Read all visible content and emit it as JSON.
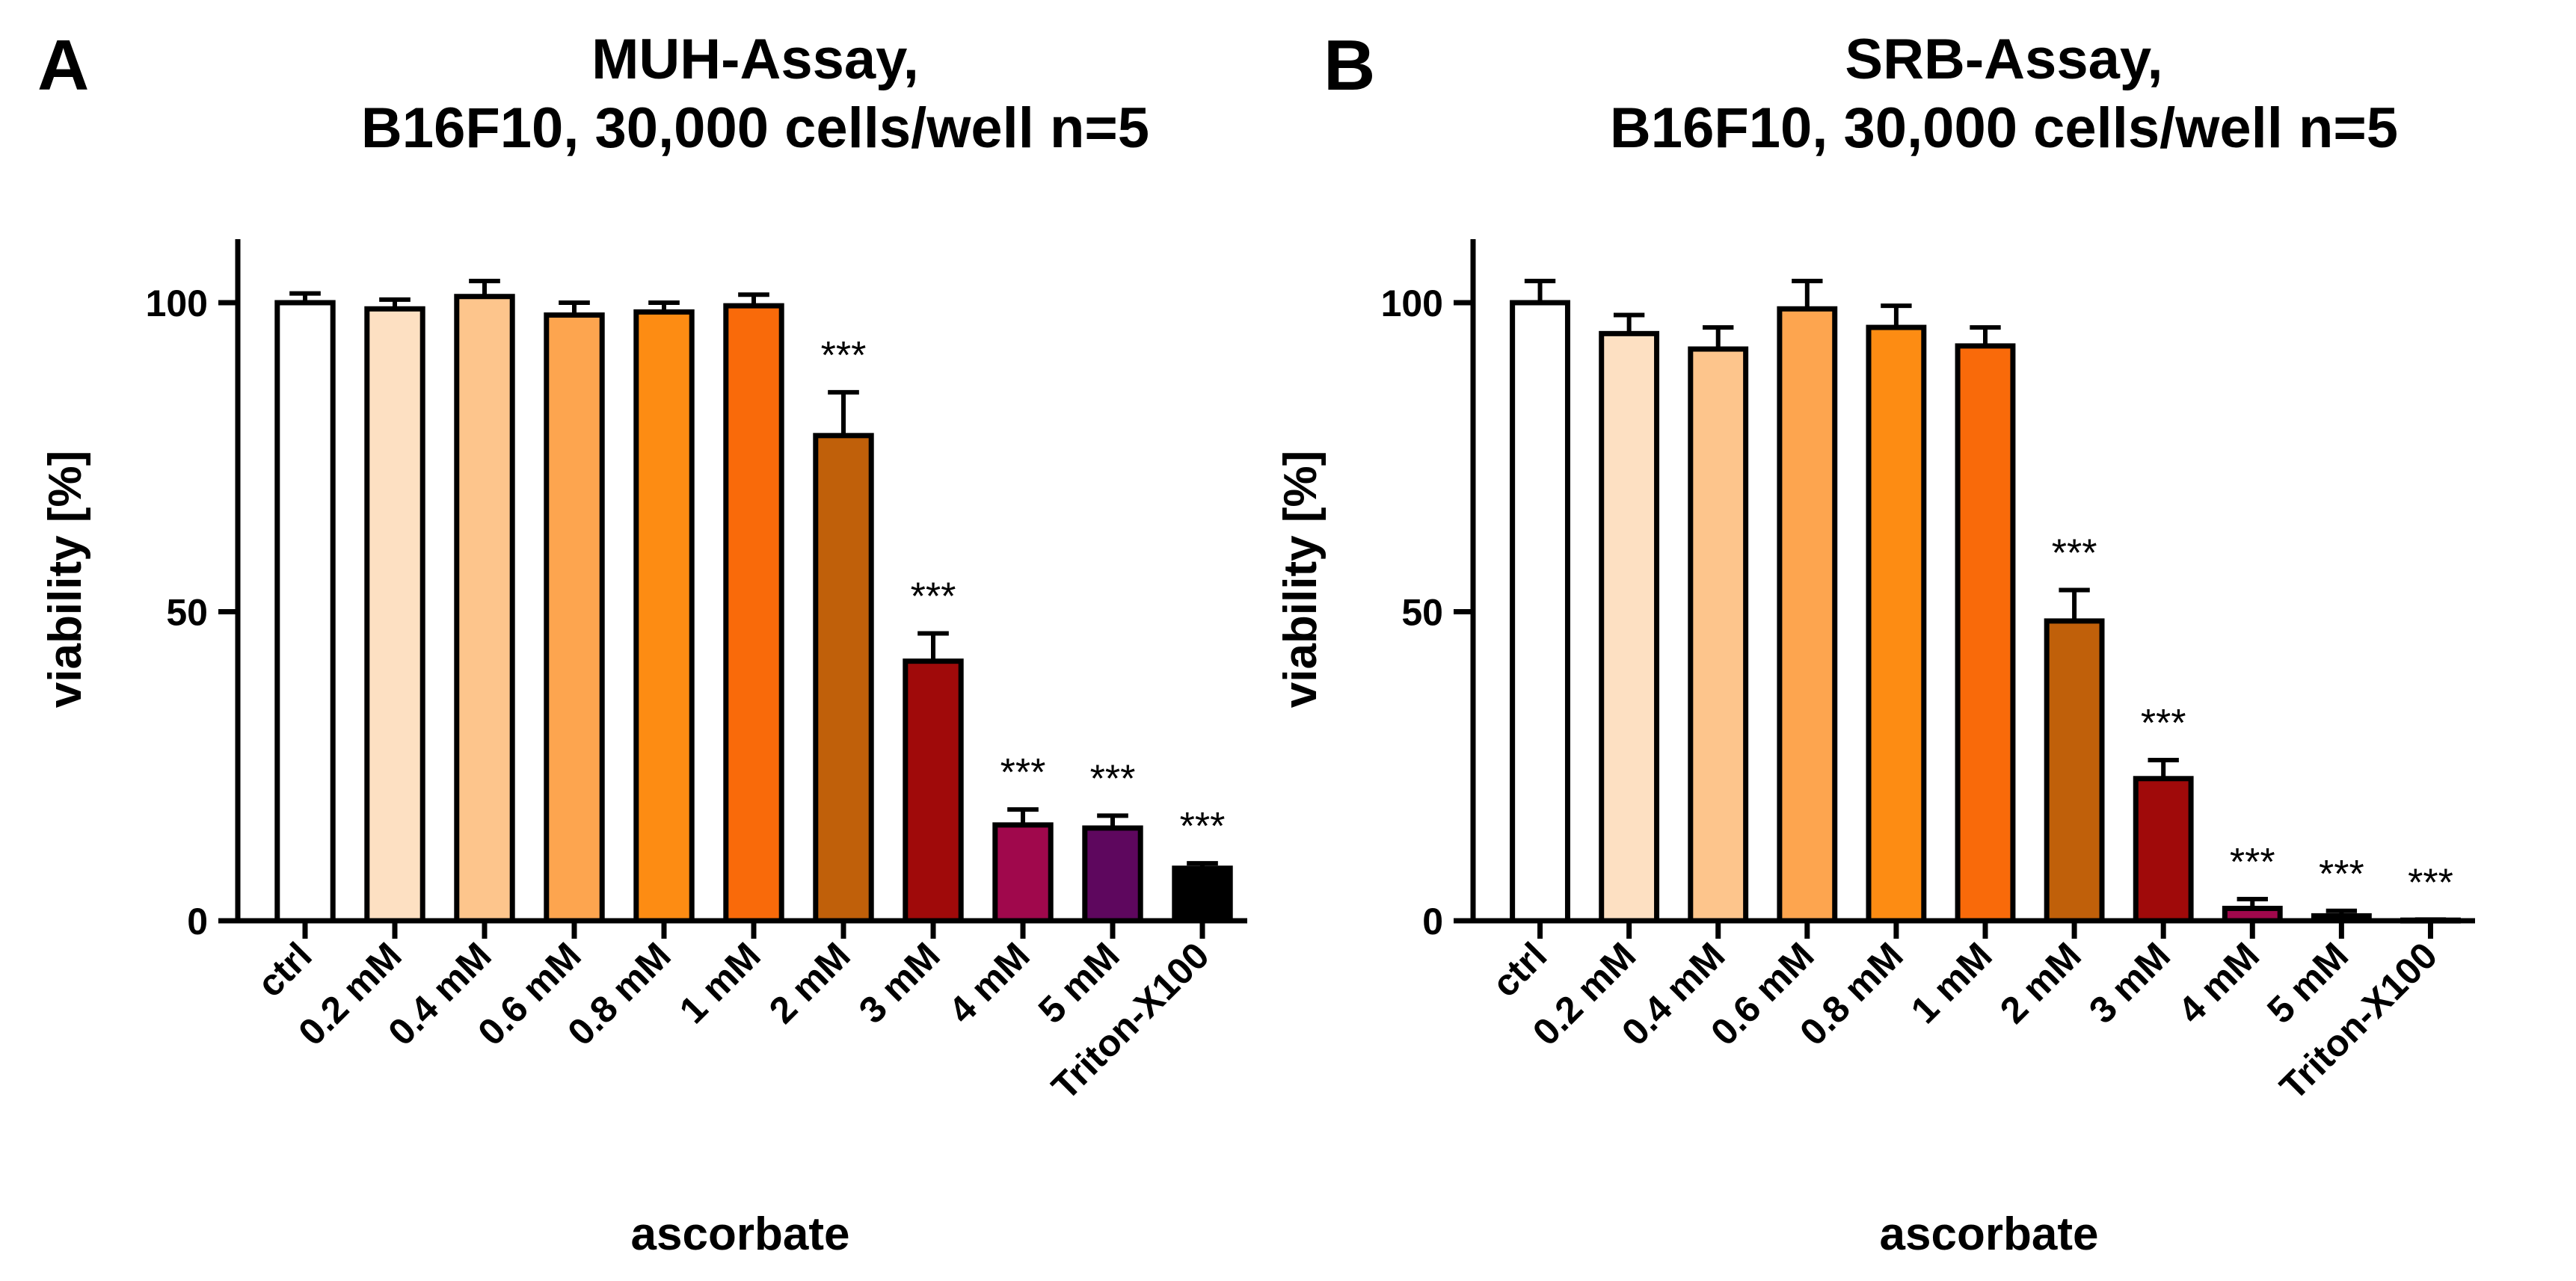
{
  "chart_data": [
    {
      "type": "bar",
      "panel_label": "A",
      "title": [
        "MUH-Assay,",
        "B16F10, 30,000 cells/well n=5"
      ],
      "xlabel": "ascorbate",
      "ylabel": "viability [%]",
      "ylim": [
        0,
        110
      ],
      "yticks": [
        0,
        50,
        100
      ],
      "categories": [
        "ctrl",
        "0.2 mM",
        "0.4 mM",
        "0.6 mM",
        "0.8 mM",
        "1 mM",
        "2 mM",
        "3 mM",
        "4 mM",
        "5 mM",
        "Triton-X100"
      ],
      "values": [
        100,
        99,
        101,
        98,
        98.5,
        99.5,
        78.5,
        42,
        15.5,
        15,
        8.5
      ],
      "errors": [
        1.5,
        1.5,
        2.5,
        2,
        1.5,
        1.8,
        7,
        4.5,
        2.5,
        2,
        0.8
      ],
      "significance": [
        "",
        "",
        "",
        "",
        "",
        "",
        "***",
        "***",
        "***",
        "***",
        "***"
      ],
      "colors": [
        "#ffffff",
        "#fde0c2",
        "#fdc58c",
        "#fda54f",
        "#fd8c13",
        "#f96a0a",
        "#c0600a",
        "#a00a0a",
        "#a0084c",
        "#5e075e",
        "#000000"
      ],
      "grid": false
    },
    {
      "type": "bar",
      "panel_label": "B",
      "title": [
        "SRB-Assay,",
        "B16F10, 30,000 cells/well n=5"
      ],
      "xlabel": "ascorbate",
      "ylabel": "viability [%]",
      "ylim": [
        0,
        110
      ],
      "yticks": [
        0,
        50,
        100
      ],
      "categories": [
        "ctrl",
        "0.2 mM",
        "0.4 mM",
        "0.6 mM",
        "0.8 mM",
        "1 mM",
        "2 mM",
        "3 mM",
        "4 mM",
        "5 mM",
        "Triton-X100"
      ],
      "values": [
        100,
        95,
        92.5,
        99,
        96,
        93,
        48.5,
        23,
        2,
        0.8,
        0.1
      ],
      "errors": [
        3.5,
        3,
        3.5,
        4.5,
        3.5,
        3,
        5,
        3,
        1.5,
        0.8,
        0.1
      ],
      "significance": [
        "",
        "",
        "",
        "",
        "",
        "",
        "***",
        "***",
        "***",
        "***",
        "***"
      ],
      "colors": [
        "#ffffff",
        "#fde0c2",
        "#fdc58c",
        "#fda54f",
        "#fd8c13",
        "#f96a0a",
        "#c0600a",
        "#a00a0a",
        "#a0084c",
        "#5e075e",
        "#000000"
      ],
      "grid": false
    }
  ]
}
